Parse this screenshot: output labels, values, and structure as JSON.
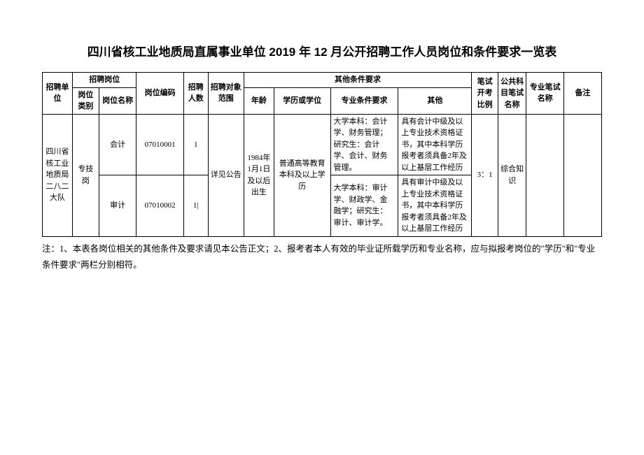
{
  "title": "四川省核工业地质局直属事业单位 2019 年 12 月公开招聘工作人员岗位和条件要求一览表",
  "headers": {
    "unit": "招聘单位",
    "post_group": "招聘岗位",
    "post_category": "岗位类别",
    "post_name": "岗位名称",
    "post_code": "岗位编码",
    "recruit_num": "招聘人数",
    "scope": "招聘对象范围",
    "other_req_group": "其他条件要求",
    "age": "年龄",
    "education": "学历或学位",
    "major": "专业条件要求",
    "other": "其他",
    "ratio": "笔试开考比例",
    "public_exam": "公共科目笔试名称",
    "prof_exam": "专业笔试名称",
    "remark": "备注"
  },
  "unit_value": "四川省核工业地质局二八二大队",
  "post_category_value": "专技岗",
  "scope_value": "详见公告",
  "age_value": "1984年1月1日及以后出生",
  "education_value": "普通高等教育本科及以上学历",
  "ratio_value": "3：1",
  "public_exam_value": "综合知识",
  "rows": [
    {
      "post_name": "会计",
      "post_code": "07010001",
      "recruit_num": "1",
      "major": "大学本科：会计学、财务管理；研究生：会计学、会计、财务管理。",
      "other": "具有会计中级及以上专业技术资格证书，其中本科学历报考者须具备2年及以上基层工作经历"
    },
    {
      "post_name": "审计",
      "post_code": "07010002",
      "recruit_num": "1|",
      "major": "大学本科：审计学、财政学、金融学；研究生：审计、审计学。",
      "other": "具有审计中级及以上专业技术资格证书，其中本科学历报考者须具备2年及以上基层工作经历"
    }
  ],
  "footnote": "注：1、本表各岗位相关的其他条件及要求请见本公告正文；2、报考者本人有效的毕业证所载学历和专业名称，应与拟报考岗位的\"学历\"和\"专业条件要求\"两栏分别相符。"
}
